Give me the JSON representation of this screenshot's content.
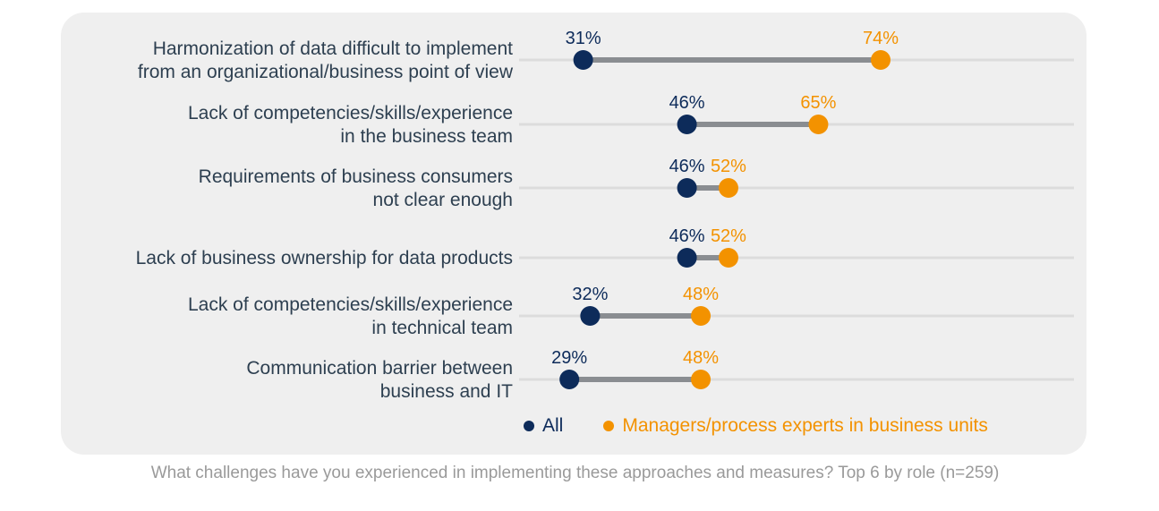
{
  "chart_data": {
    "type": "dumbbell",
    "categories": [
      [
        "Harmonization of data difficult to implement",
        "from an organizational/business point of view"
      ],
      [
        "Lack of competencies/skills/experience",
        "in the business team"
      ],
      [
        "Requirements of business consumers",
        "not clear enough"
      ],
      [
        "Lack of business ownership for data products"
      ],
      [
        "Lack of competencies/skills/experience",
        "in technical team"
      ],
      [
        "Communication barrier between",
        "business and IT"
      ]
    ],
    "series": [
      {
        "name": "All",
        "color": "#0d2b5a",
        "values": [
          31,
          46,
          46,
          46,
          32,
          29
        ],
        "labels": [
          "31%",
          "46%",
          "46%",
          "46%",
          "32%",
          "29%"
        ]
      },
      {
        "name": "Managers/process experts in business units",
        "color": "#f39200",
        "values": [
          74,
          65,
          52,
          52,
          48,
          48
        ],
        "labels": [
          "74%",
          "65%",
          "52%",
          "52%",
          "48%",
          "48%"
        ]
      }
    ],
    "unit": "%",
    "legend_position": "bottom"
  },
  "caption": "What challenges have you experienced in implementing these approaches and measures? Top 6 by role (n=259)",
  "colors": {
    "panel_background": "#efefef",
    "connector": "#8a8d91",
    "guide_line": "#dcdcdc",
    "category_text": "#2d3f50",
    "caption_text": "#9a9a9a"
  }
}
